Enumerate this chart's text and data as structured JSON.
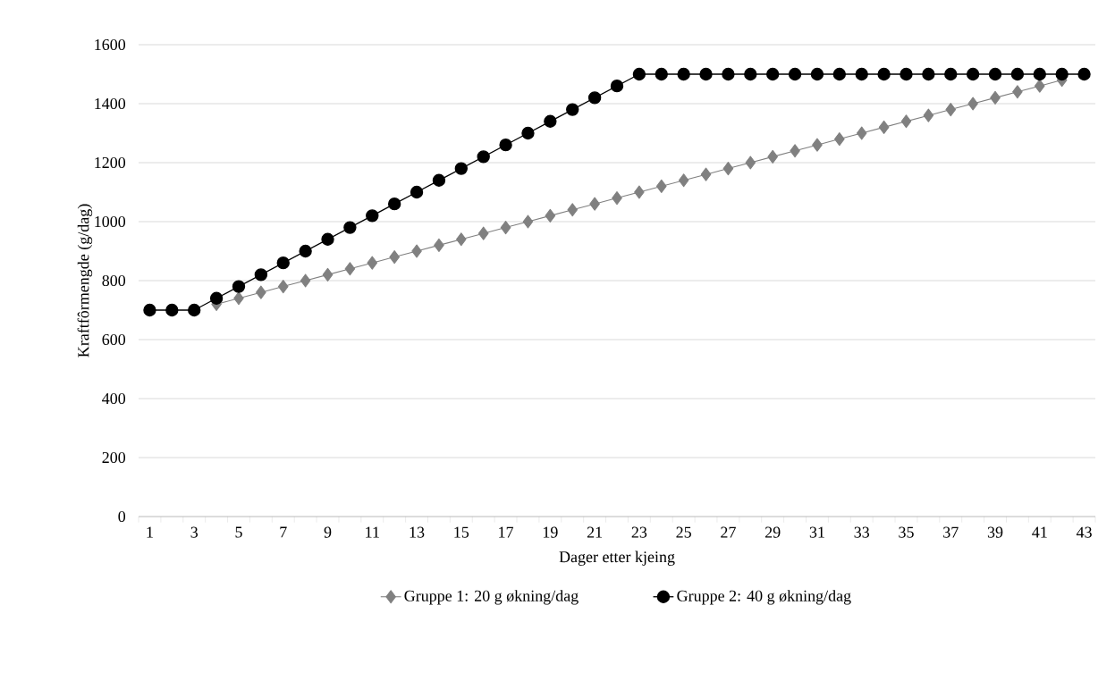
{
  "chart_data": {
    "type": "line",
    "xlabel": "Dager etter kjeing",
    "ylabel": "Kraftfôrmengde (g/dag)",
    "categories": [
      "1",
      null,
      "3",
      null,
      "5",
      null,
      "7",
      null,
      "9",
      null,
      "11",
      null,
      "13",
      null,
      "15",
      null,
      "17",
      null,
      "19",
      null,
      "21",
      null,
      "23",
      null,
      "25",
      null,
      "27",
      null,
      "29",
      null,
      "31",
      null,
      "33",
      null,
      "35",
      null,
      "37",
      null,
      "39",
      null,
      "41",
      null,
      "43"
    ],
    "series": [
      {
        "name": "Gruppe 1: 20 g økning/dag",
        "color": "#808080",
        "marker": "diamond",
        "values": [
          null,
          null,
          null,
          720,
          740,
          760,
          780,
          800,
          820,
          840,
          860,
          880,
          900,
          920,
          940,
          960,
          980,
          1000,
          1020,
          1040,
          1060,
          1080,
          1100,
          1120,
          1140,
          1160,
          1180,
          1200,
          1220,
          1240,
          1260,
          1280,
          1300,
          1320,
          1340,
          1360,
          1380,
          1400,
          1420,
          1440,
          1460,
          1480,
          null
        ]
      },
      {
        "name": "Gruppe 2: 40 g økning/dag",
        "color": "#000000",
        "marker": "circle",
        "values": [
          700,
          700,
          700,
          740,
          780,
          820,
          860,
          900,
          940,
          980,
          1020,
          1060,
          1100,
          1140,
          1180,
          1220,
          1260,
          1300,
          1340,
          1380,
          1420,
          1460,
          1500,
          1500,
          1500,
          1500,
          1500,
          1500,
          1500,
          1500,
          1500,
          1500,
          1500,
          1500,
          1500,
          1500,
          1500,
          1500,
          1500,
          1500,
          1500,
          1500,
          1500
        ]
      }
    ],
    "ylim": [
      0,
      1600
    ],
    "yticks": [
      0,
      200,
      400,
      600,
      800,
      1000,
      1200,
      1400,
      1600
    ],
    "grid": "y",
    "legend": "bottom",
    "line_style": "solid"
  }
}
